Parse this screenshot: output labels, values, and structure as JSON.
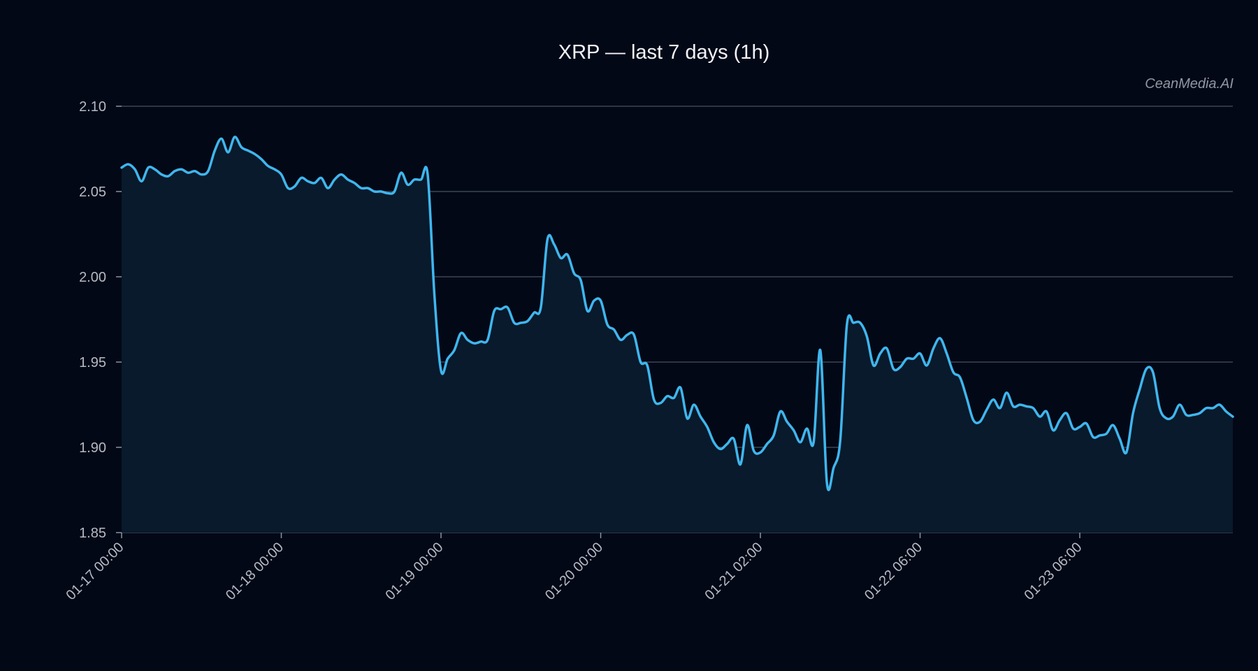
{
  "chart_data": {
    "type": "line",
    "title": "XRP — last 7 days (1h)",
    "watermark": "CeanMedia.AI",
    "xlabel": "",
    "ylabel": "",
    "ylim": [
      1.85,
      2.1
    ],
    "yticks": [
      "1.85",
      "1.90",
      "1.95",
      "2.00",
      "2.05",
      "2.10"
    ],
    "xticks": [
      {
        "label": "01-17 00:00",
        "index": 0
      },
      {
        "label": "01-18 00:00",
        "index": 24
      },
      {
        "label": "01-19 00:00",
        "index": 48
      },
      {
        "label": "01-20 00:00",
        "index": 72
      },
      {
        "label": "01-21 02:00",
        "index": 96
      },
      {
        "label": "01-22 06:00",
        "index": 120
      },
      {
        "label": "01-23 06:00",
        "index": 144
      }
    ],
    "grid": true,
    "area_fill": true,
    "series": [
      {
        "values": [
          2.064,
          2.066,
          2.063,
          2.056,
          2.064,
          2.063,
          2.06,
          2.059,
          2.062,
          2.063,
          2.061,
          2.062,
          2.06,
          2.062,
          2.074,
          2.081,
          2.073,
          2.082,
          2.076,
          2.074,
          2.072,
          2.069,
          2.065,
          2.063,
          2.06,
          2.052,
          2.053,
          2.058,
          2.056,
          2.055,
          2.058,
          2.052,
          2.057,
          2.06,
          2.057,
          2.055,
          2.052,
          2.052,
          2.05,
          2.05,
          2.049,
          2.05,
          2.061,
          2.054,
          2.057,
          2.057,
          2.06,
          1.99,
          1.945,
          1.952,
          1.957,
          1.967,
          1.963,
          1.961,
          1.962,
          1.963,
          1.98,
          1.981,
          1.982,
          1.973,
          1.973,
          1.974,
          1.979,
          1.982,
          2.022,
          2.019,
          2.011,
          2.013,
          2.002,
          1.998,
          1.98,
          1.986,
          1.986,
          1.972,
          1.969,
          1.963,
          1.966,
          1.966,
          1.95,
          1.948,
          1.928,
          1.926,
          1.93,
          1.929,
          1.935,
          1.917,
          1.925,
          1.918,
          1.912,
          1.903,
          1.899,
          1.902,
          1.905,
          1.89,
          1.913,
          1.898,
          1.897,
          1.902,
          1.907,
          1.921,
          1.915,
          1.91,
          1.903,
          1.911,
          1.903,
          1.957,
          1.879,
          1.888,
          1.904,
          1.972,
          1.973,
          1.973,
          1.965,
          1.948,
          1.955,
          1.958,
          1.946,
          1.947,
          1.952,
          1.952,
          1.955,
          1.948,
          1.958,
          1.964,
          1.955,
          1.944,
          1.941,
          1.929,
          1.916,
          1.915,
          1.922,
          1.928,
          1.923,
          1.932,
          1.924,
          1.925,
          1.924,
          1.923,
          1.918,
          1.921,
          1.91,
          1.916,
          1.92,
          1.911,
          1.912,
          1.914,
          1.906,
          1.907,
          1.908,
          1.913,
          1.905,
          1.897,
          1.92,
          1.934,
          1.946,
          1.944,
          1.923,
          1.917,
          1.918,
          1.925,
          1.919,
          1.919,
          1.92,
          1.923,
          1.923,
          1.925,
          1.921,
          1.918
        ]
      }
    ]
  },
  "colors": {
    "background": "#030816",
    "line": "#3fb6ee",
    "area": "#081a2c",
    "grid": "#3a4556",
    "title": "#f2f4f8",
    "tick_text": "#b4bac6",
    "watermark": "#8f97a6"
  }
}
